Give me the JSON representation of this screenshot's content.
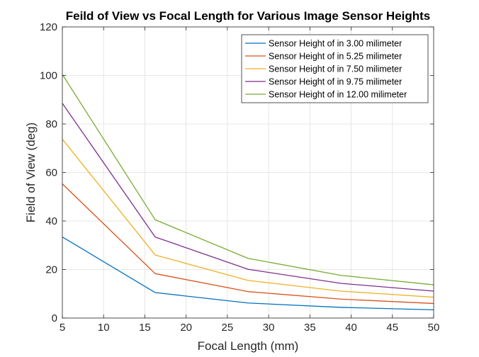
{
  "chart_data": {
    "type": "line",
    "title": "Feild of View vs Focal Length for Various Image Sensor Heights",
    "xlabel": "Focal Length (mm)",
    "ylabel": "Field of View (deg)",
    "xlim": [
      5,
      50
    ],
    "ylim": [
      0,
      120
    ],
    "xticks": [
      5,
      10,
      15,
      20,
      25,
      30,
      35,
      40,
      45,
      50
    ],
    "yticks": [
      0,
      20,
      40,
      60,
      80,
      100,
      120
    ],
    "grid": true,
    "legend_position": "top-right",
    "x": [
      5,
      16.25,
      27.5,
      38.75,
      50
    ],
    "series": [
      {
        "name": "Sensor Height of in 3.00 milimeter",
        "color": "#0072BD",
        "values": [
          33.4,
          10.5,
          6.2,
          4.4,
          3.4
        ]
      },
      {
        "name": "Sensor Height of in 5.25 milimeter",
        "color": "#D95319",
        "values": [
          55.3,
          18.3,
          10.9,
          7.8,
          6.0
        ]
      },
      {
        "name": "Sensor Height of in 7.50 milimeter",
        "color": "#EDB120",
        "values": [
          73.7,
          26.0,
          15.5,
          11.1,
          8.6
        ]
      },
      {
        "name": "Sensor Height of in 9.75 milimeter",
        "color": "#7E2F8E",
        "values": [
          88.5,
          33.4,
          20.1,
          14.3,
          11.1
        ]
      },
      {
        "name": "Sensor Height of in 12.00 milimeter",
        "color": "#77AC30",
        "values": [
          100.4,
          40.5,
          24.6,
          17.6,
          13.7
        ]
      }
    ]
  }
}
